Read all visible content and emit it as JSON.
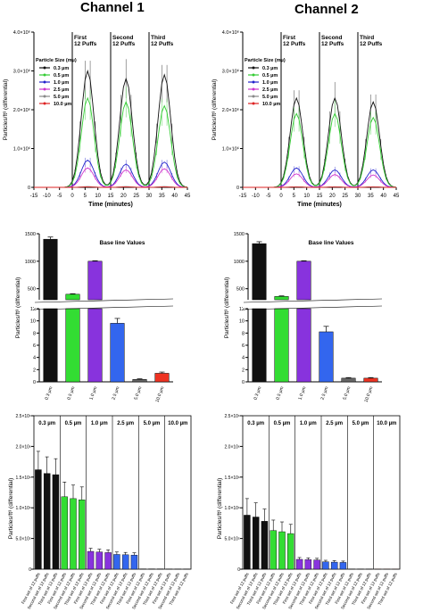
{
  "titles": {
    "left": "Channel 1",
    "right": "Channel 2"
  },
  "colors": {
    "0.3": "#111111",
    "0.5": "#33cc33",
    "1.0": "#2222cc",
    "2.5": "#cc33cc",
    "5.0": "#888888",
    "10.0": "#dd2222",
    "bar_0.3": "#111111",
    "bar_0.5": "#33dd33",
    "bar_1.0": "#8833dd",
    "bar_2.5": "#3366ee",
    "bar_5.0": "#666666",
    "bar_10.0": "#ee3322"
  },
  "chart_data": [
    {
      "type": "line",
      "panel": "Channel 1 time series",
      "xlabel": "Time (minutes)",
      "ylabel": "Particles/ft³ (differential)",
      "xlim": [
        -15,
        45
      ],
      "ylim": [
        0,
        4000000
      ],
      "xticks": [
        "-15",
        "-10",
        "-5",
        "0",
        "5",
        "10",
        "15",
        "20",
        "25",
        "30",
        "35",
        "40",
        "45"
      ],
      "yticks": [
        "0",
        "1.0×10⁶",
        "2.0×10⁶",
        "3.0×10⁶",
        "4.0×10⁶"
      ],
      "legend_title": "Particle Size (mµ)",
      "puff_labels": [
        [
          "First",
          "12 Puffs"
        ],
        [
          "Second",
          "12 Puffs"
        ],
        [
          "Third",
          "12 Puffs"
        ]
      ],
      "puff_bounds": [
        0,
        15,
        30
      ],
      "peaks": [
        {
          "name": "0.3 µm",
          "color_key": "0.3",
          "peak": [
            3000000,
            2800000,
            2900000
          ]
        },
        {
          "name": "0.5 µm",
          "color_key": "0.5",
          "peak": [
            2300000,
            2200000,
            2100000
          ]
        },
        {
          "name": "1.0 µm",
          "color_key": "1.0",
          "peak": [
            700000,
            600000,
            650000
          ]
        },
        {
          "name": "2.5 µm",
          "color_key": "2.5",
          "peak": [
            500000,
            450000,
            480000
          ]
        },
        {
          "name": "5.0 µm",
          "color_key": "5.0",
          "peak": [
            20000,
            20000,
            20000
          ]
        },
        {
          "name": "10.0 µm",
          "color_key": "10.0",
          "peak": [
            10000,
            10000,
            10000
          ]
        }
      ]
    },
    {
      "type": "line",
      "panel": "Channel 2 time series",
      "xlabel": "Time (minutes)",
      "ylabel": "Particles/ft³ (differential)",
      "xlim": [
        -15,
        45
      ],
      "ylim": [
        0,
        4000000
      ],
      "xticks": [
        "-15",
        "-10",
        "-5",
        "0",
        "5",
        "10",
        "15",
        "20",
        "25",
        "30",
        "35",
        "40",
        "45"
      ],
      "yticks": [
        "0",
        "1.0×10⁶",
        "2.0×10⁶",
        "3.0×10⁶",
        "4.0×10⁶"
      ],
      "legend_title": "Particle Size (mµ)",
      "puff_labels": [
        [
          "First",
          "12 Puffs"
        ],
        [
          "Second",
          "12 Puffs"
        ],
        [
          "Third",
          "12 Puffs"
        ]
      ],
      "puff_bounds": [
        0,
        15,
        30
      ],
      "peaks": [
        {
          "name": "0.3 µm",
          "color_key": "0.3",
          "peak": [
            2300000,
            2300000,
            2200000
          ]
        },
        {
          "name": "0.5 µm",
          "color_key": "0.5",
          "peak": [
            1900000,
            1900000,
            1800000
          ]
        },
        {
          "name": "1.0 µm",
          "color_key": "1.0",
          "peak": [
            500000,
            450000,
            450000
          ]
        },
        {
          "name": "2.5 µm",
          "color_key": "2.5",
          "peak": [
            350000,
            330000,
            320000
          ]
        },
        {
          "name": "5.0 µm",
          "color_key": "5.0",
          "peak": [
            15000,
            15000,
            15000
          ]
        },
        {
          "name": "10.0 µm",
          "color_key": "10.0",
          "peak": [
            8000,
            8000,
            8000
          ]
        }
      ]
    },
    {
      "type": "bar",
      "panel": "Channel 1 baseline",
      "title": "Base line Values",
      "ylabel": "Particles/ft³ (differential)",
      "categories": [
        "0.3 µm",
        "0.5 µm",
        "1.0 µm",
        "2.5 µm",
        "5.0 µm",
        "10.0 µm"
      ],
      "values": [
        1400,
        400,
        1000,
        9.6,
        0.4,
        1.4
      ],
      "errors": [
        40,
        10,
        10,
        0.8,
        0.1,
        0.2
      ],
      "top_yticks": [
        "500",
        "1000",
        "1500"
      ],
      "bottom_yticks": [
        "0",
        "2",
        "4",
        "6",
        "8",
        "10",
        "12"
      ]
    },
    {
      "type": "bar",
      "panel": "Channel 2 baseline",
      "title": "Base line Values",
      "ylabel": "Particles/ft³ (differential)",
      "categories": [
        "0.3 µm",
        "0.5 µm",
        "1.0 µm",
        "2.5 µm",
        "5.0 µm",
        "10.0 µm"
      ],
      "values": [
        1320,
        360,
        1000,
        8.2,
        0.6,
        0.6
      ],
      "errors": [
        35,
        10,
        10,
        0.9,
        0.1,
        0.1
      ],
      "top_yticks": [
        "500",
        "1000",
        "1500"
      ],
      "bottom_yticks": [
        "0",
        "2",
        "4",
        "6",
        "8",
        "10",
        "12"
      ]
    },
    {
      "type": "bar",
      "panel": "Channel 1 per puff set",
      "ylabel": "Particles/ft³ (differential)",
      "ylim": [
        0,
        2500000
      ],
      "yticks": [
        "0",
        "5.0×10⁵",
        "1.0×10⁶",
        "1.5×10⁶",
        "2.0×10⁶",
        "2.5×10⁶"
      ],
      "groups": [
        "0.3 µm",
        "0.5 µm",
        "1.0 µm",
        "2.5 µm",
        "5.0 µm",
        "10.0 µm"
      ],
      "bar_labels": [
        "First set of 12 puffs",
        "Second set of 12 puffs",
        "Third set of 12 puffs"
      ],
      "values": [
        [
          1620000,
          1560000,
          1540000
        ],
        [
          1180000,
          1150000,
          1130000
        ],
        [
          290000,
          280000,
          270000
        ],
        [
          240000,
          235000,
          230000
        ],
        [
          5000,
          5000,
          5000
        ],
        [
          3000,
          3000,
          3000
        ]
      ],
      "errors": [
        [
          300000,
          270000,
          260000
        ],
        [
          240000,
          220000,
          210000
        ],
        [
          50000,
          45000,
          45000
        ],
        [
          40000,
          38000,
          36000
        ],
        [
          1000,
          1000,
          1000
        ],
        [
          1000,
          1000,
          1000
        ]
      ]
    },
    {
      "type": "bar",
      "panel": "Channel 2 per puff set",
      "ylabel": "Particles/ft³ (differential)",
      "ylim": [
        0,
        2500000
      ],
      "yticks": [
        "0",
        "5.0×10⁵",
        "1.0×10⁶",
        "1.5×10⁶",
        "2.0×10⁶",
        "2.5×10⁶"
      ],
      "groups": [
        "0.3 µm",
        "0.5 µm",
        "1.0 µm",
        "2.5 µm",
        "5.0 µm",
        "10.0 µm"
      ],
      "bar_labels": [
        "First set of 12 puffs",
        "Second set of 12 puffs",
        "Third set of 12 puffs"
      ],
      "values": [
        [
          880000,
          850000,
          780000
        ],
        [
          630000,
          610000,
          580000
        ],
        [
          160000,
          155000,
          150000
        ],
        [
          120000,
          115000,
          110000
        ],
        [
          4000,
          4000,
          4000
        ],
        [
          2000,
          2000,
          2000
        ]
      ],
      "errors": [
        [
          270000,
          230000,
          200000
        ],
        [
          170000,
          160000,
          150000
        ],
        [
          30000,
          28000,
          27000
        ],
        [
          25000,
          24000,
          22000
        ],
        [
          1000,
          1000,
          1000
        ],
        [
          1000,
          1000,
          1000
        ]
      ]
    }
  ]
}
